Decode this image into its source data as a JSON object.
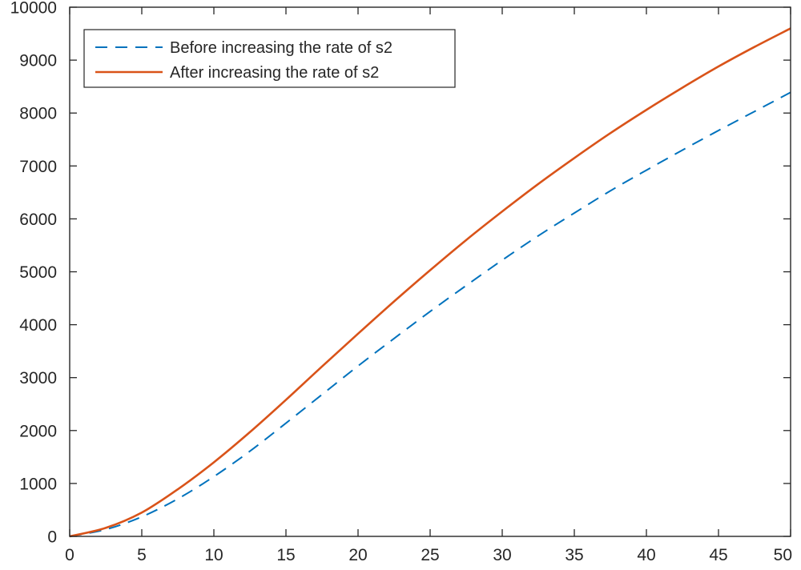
{
  "chart_data": {
    "type": "line",
    "title": "",
    "xlabel": "",
    "ylabel": "",
    "xlim": [
      0,
      50
    ],
    "ylim": [
      0,
      10000
    ],
    "x_ticks": [
      0,
      5,
      10,
      15,
      20,
      25,
      30,
      35,
      40,
      45,
      50
    ],
    "y_ticks": [
      0,
      1000,
      2000,
      3000,
      4000,
      5000,
      6000,
      7000,
      8000,
      9000,
      10000
    ],
    "x_tick_labels": [
      "0",
      "5",
      "10",
      "15",
      "20",
      "25",
      "30",
      "35",
      "40",
      "45",
      "50"
    ],
    "y_tick_labels": [
      "0",
      "1000",
      "2000",
      "3000",
      "4000",
      "5000",
      "6000",
      "7000",
      "8000",
      "9000",
      "10000"
    ],
    "grid": false,
    "legend_position": "top-left",
    "x": [
      0,
      2.5,
      5,
      7.5,
      10,
      12.5,
      15,
      17.5,
      20,
      22.5,
      25,
      27.5,
      30,
      32.5,
      35,
      37.5,
      40,
      42.5,
      45,
      47.5,
      50
    ],
    "series": [
      {
        "name": "Before increasing the rate of s2",
        "style": "dashed",
        "color": "#0072BD",
        "values": [
          0,
          130,
          370,
          710,
          1130,
          1610,
          2140,
          2680,
          3220,
          3740,
          4250,
          4740,
          5220,
          5680,
          6110,
          6530,
          6920,
          7300,
          7670,
          8030,
          8390
        ]
      },
      {
        "name": "After increasing the rate of s2",
        "style": "solid",
        "color": "#D95319",
        "values": [
          0,
          160,
          450,
          890,
          1400,
          1970,
          2580,
          3210,
          3830,
          4440,
          5030,
          5600,
          6140,
          6660,
          7150,
          7620,
          8060,
          8480,
          8880,
          9250,
          9600
        ]
      }
    ]
  }
}
